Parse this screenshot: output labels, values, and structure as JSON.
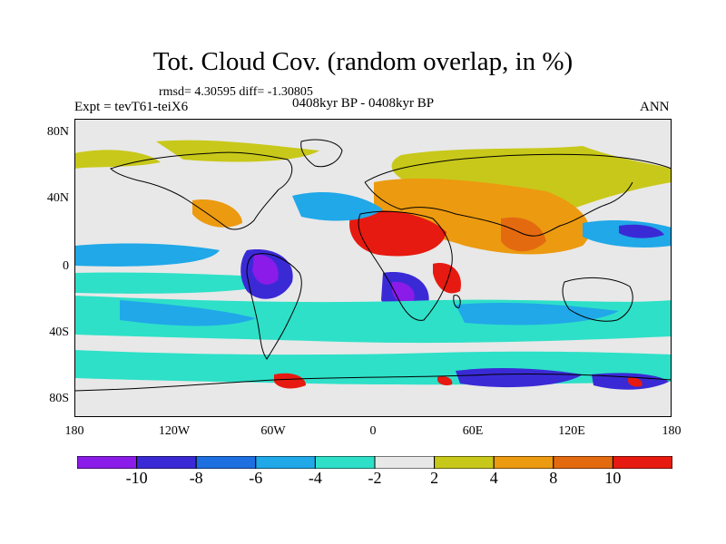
{
  "header": {
    "title": "Tot. Cloud Cov. (random overlap, in %)",
    "stats": "rmsd= 4.30595 diff= -1.30805",
    "experiment": "Expt = tevT61-teiX6",
    "period": "0408kyr BP - 0408kyr BP",
    "season": "ANN"
  },
  "map": {
    "projection": "cylindrical equidistant",
    "lon_range": [
      -180,
      180
    ],
    "lat_range": [
      -90,
      90
    ],
    "lat_ticks": [
      "80N",
      "40N",
      "0",
      "40S",
      "80S"
    ],
    "lon_ticks": [
      "180",
      "120W",
      "60W",
      "0",
      "60E",
      "120E",
      "180"
    ]
  },
  "colorbar": {
    "levels": [
      "-10",
      "-8",
      "-6",
      "-4",
      "-2",
      "2",
      "4",
      "8",
      "10"
    ],
    "colors": [
      "#8a1be8",
      "#3a2ad6",
      "#1e6fe0",
      "#20a8e8",
      "#2ee0c8",
      "#e8e8e8",
      "#c8c81a",
      "#ec9a10",
      "#e46a10",
      "#e61a10"
    ]
  },
  "colors": {
    "background": "#e8e8e8",
    "coastline": "#000000"
  }
}
